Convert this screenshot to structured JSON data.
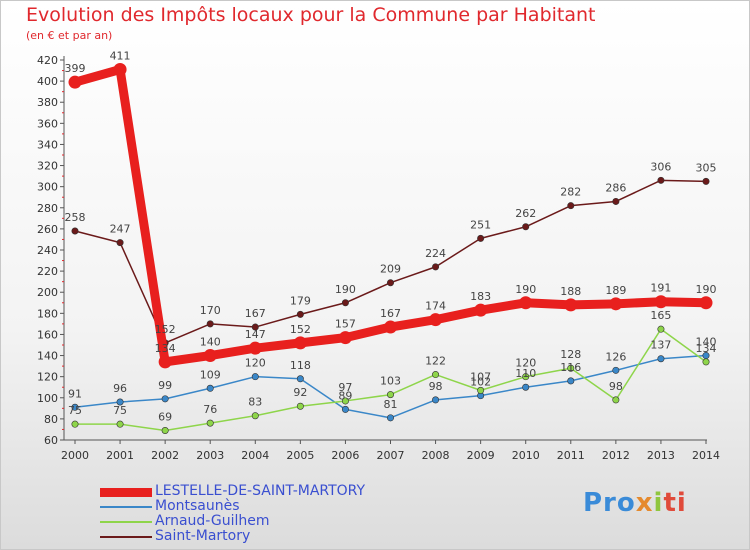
{
  "title": "Evolution des Impôts locaux pour la Commune par Habitant",
  "subtitle": "(en € et par an)",
  "logo": {
    "text": "Proxiti"
  },
  "chart_data": {
    "type": "line",
    "title": "Evolution des Impôts locaux pour la Commune par Habitant",
    "subtitle": "(en € et par an)",
    "x": [
      2000,
      2001,
      2002,
      2003,
      2004,
      2005,
      2006,
      2007,
      2008,
      2009,
      2010,
      2011,
      2012,
      2013,
      2014
    ],
    "ylim": [
      60,
      420
    ],
    "yticks": [
      60,
      80,
      100,
      120,
      140,
      160,
      180,
      200,
      220,
      240,
      260,
      280,
      300,
      320,
      340,
      360,
      380,
      400,
      420
    ],
    "grid": false,
    "legend": "bottom-left",
    "series": [
      {
        "name": "LESTELLE-DE-SAINT-MARTORY",
        "color": "#e8201e",
        "values": [
          399,
          411,
          134,
          140,
          147,
          152,
          157,
          167,
          174,
          183,
          190,
          188,
          189,
          191,
          190
        ],
        "labels": [
          399,
          411,
          134,
          140,
          147,
          152,
          157,
          167,
          174,
          183,
          190,
          188,
          189,
          191,
          190
        ]
      },
      {
        "name": "Montsaunès",
        "color": "#3a87c8",
        "values": [
          91,
          96,
          99,
          109,
          120,
          118,
          89,
          81,
          98,
          102,
          110,
          116,
          126,
          137,
          140
        ],
        "labels": [
          91,
          96,
          99,
          109,
          120,
          118,
          89,
          81,
          98,
          102,
          110,
          116,
          126,
          137,
          140
        ]
      },
      {
        "name": "Arnaud-Guilhem",
        "color": "#8ed54a",
        "values": [
          75,
          75,
          69,
          76,
          83,
          92,
          97,
          103,
          122,
          107,
          120,
          128,
          98,
          165,
          134
        ],
        "labels": [
          75,
          75,
          69,
          76,
          83,
          92,
          97,
          103,
          122,
          107,
          120,
          128,
          98,
          165,
          134
        ]
      },
      {
        "name": "Saint-Martory",
        "color": "#6b1a1a",
        "values": [
          258,
          247,
          152,
          170,
          167,
          179,
          190,
          209,
          224,
          251,
          262,
          282,
          286,
          306,
          305
        ],
        "labels": [
          258,
          247,
          152,
          170,
          167,
          179,
          190,
          209,
          224,
          251,
          262,
          282,
          286,
          306,
          305
        ]
      }
    ]
  }
}
